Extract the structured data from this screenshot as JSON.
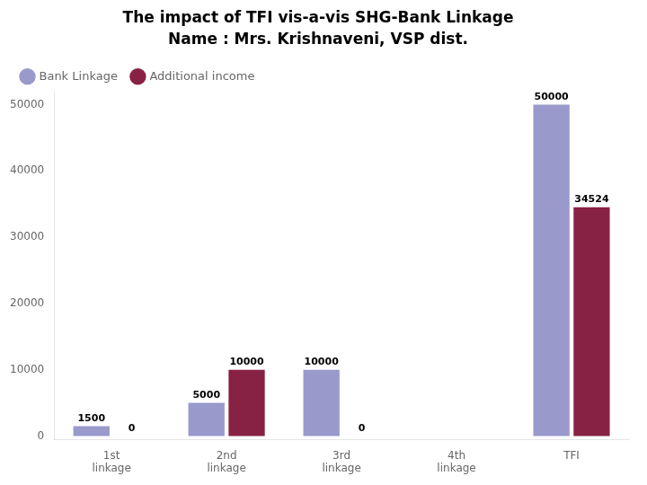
{
  "chart_data": {
    "type": "bar",
    "title": "The impact of TFI vis-a-vis SHG-Bank Linkage",
    "subtitle": "Name : Mrs. Krishnaveni, VSP dist.",
    "categories": [
      "1st\nlinkage",
      "2nd\nlinkage",
      "3rd\nlinkage",
      "4th\nlinkage",
      "TFI"
    ],
    "series": [
      {
        "name": "Bank Linkage",
        "color": "#9999cc",
        "values": [
          1500,
          5000,
          10000,
          0,
          50000
        ],
        "value_labels": [
          "1500",
          "5000",
          "10000",
          null,
          "50000"
        ]
      },
      {
        "name": "Additional income",
        "color": "#882244",
        "values": [
          0,
          10000,
          0,
          0,
          34524
        ],
        "value_labels": [
          "0",
          "10000",
          "0",
          null,
          "34524"
        ]
      }
    ],
    "ylim": [
      -500,
      52000
    ],
    "yticks": [
      0,
      10000,
      20000,
      30000,
      40000,
      50000
    ],
    "grid": false,
    "legend": "upper left",
    "data_labels": true
  }
}
